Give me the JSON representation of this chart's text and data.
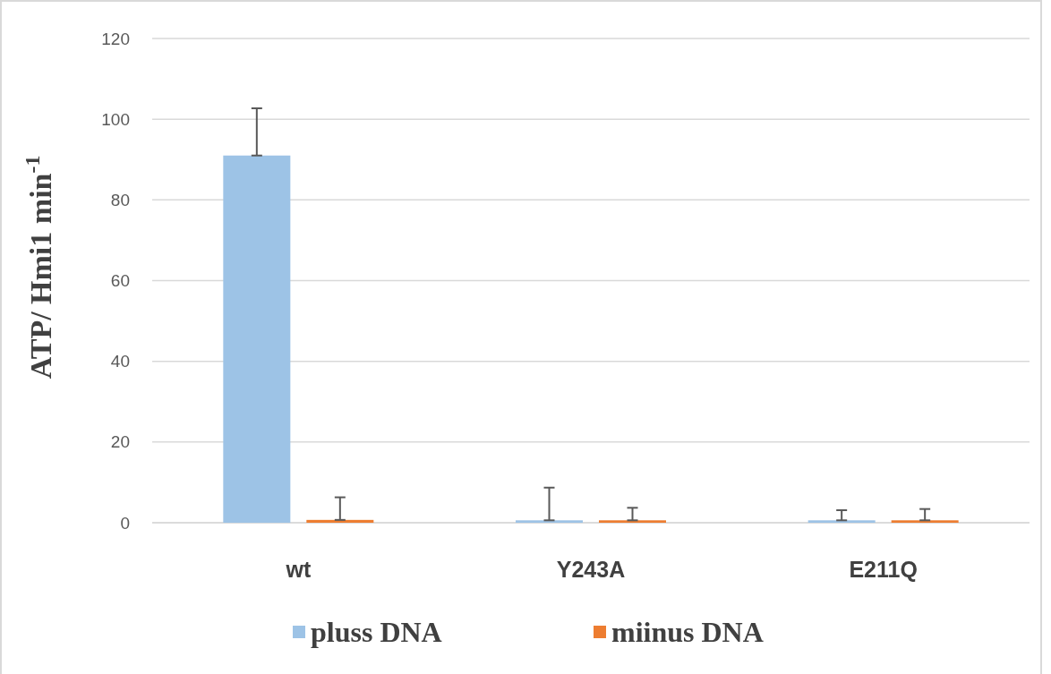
{
  "chart_data": {
    "type": "bar",
    "ylabel": "ATP/ Hmi1 min$^{-1}$",
    "categories": [
      "wt",
      "Y243A",
      "E211Q"
    ],
    "series": [
      {
        "name": "pluss DNA",
        "color": "#9dc3e6",
        "values": [
          91,
          0.6,
          0.6
        ],
        "errors": [
          [
            91,
            102.7
          ],
          [
            0.6,
            8.7
          ],
          [
            0.6,
            3.1
          ]
        ]
      },
      {
        "name": "miinus DNA",
        "color": "#ed7d31",
        "values": [
          0.7,
          0.6,
          0.6
        ],
        "errors": [
          [
            0.7,
            6.3
          ],
          [
            0.6,
            3.7
          ],
          [
            0.6,
            3.4
          ]
        ]
      }
    ],
    "ylim": [
      0,
      120
    ],
    "yticks": [
      0,
      20,
      40,
      60,
      80,
      100,
      120
    ],
    "grid": "y",
    "legend": "bottom"
  }
}
